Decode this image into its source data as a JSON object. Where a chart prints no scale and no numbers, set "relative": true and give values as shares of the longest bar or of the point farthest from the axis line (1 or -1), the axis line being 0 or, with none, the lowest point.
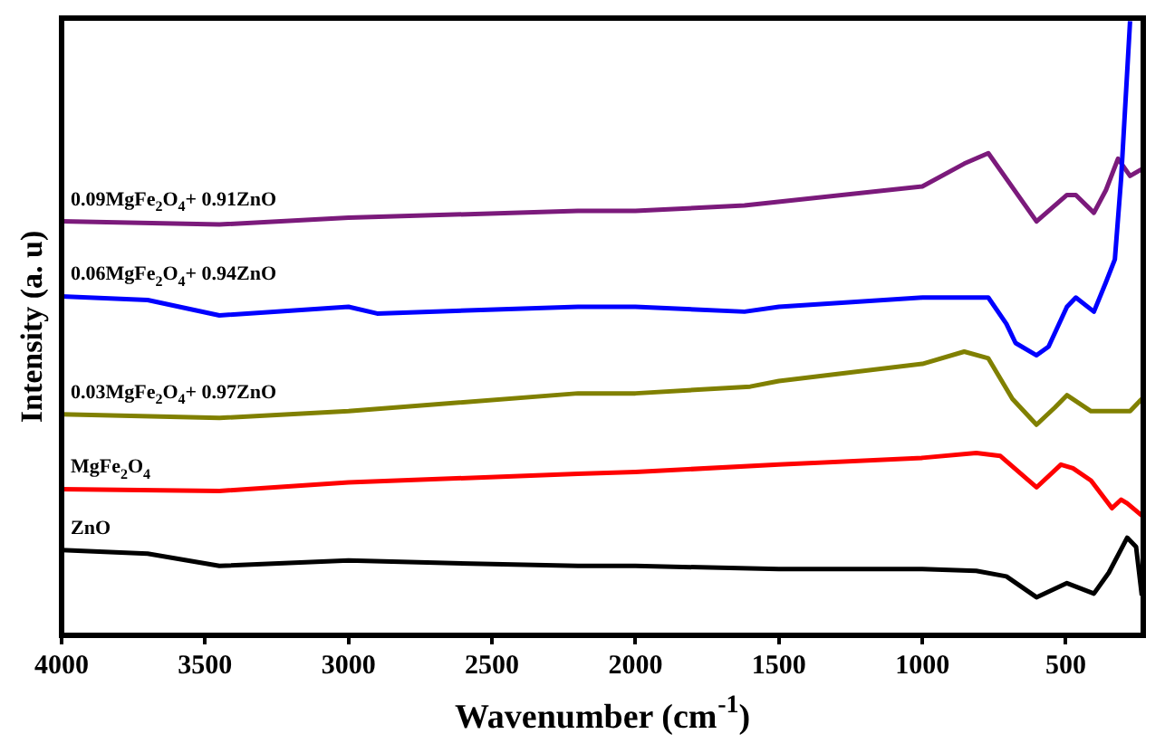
{
  "chart_data": {
    "type": "line",
    "relative": true,
    "xlabel": "Wavenumber (cm$^{-1}$)",
    "ylabel": "Intensity (a. u)",
    "xlim": [
      4000,
      230
    ],
    "xticks": [
      4000,
      3500,
      3000,
      2500,
      2000,
      1500,
      1000,
      500
    ],
    "grid": false,
    "legend": false,
    "marker": "none",
    "line_style": "solid",
    "series": [
      {
        "name": "ZnO",
        "color": "#000000",
        "x": [
          4000,
          3700,
          3450,
          3000,
          2500,
          2200,
          2000,
          1500,
          1000,
          812,
          707,
          602,
          496,
          402,
          350,
          286,
          255,
          235
        ],
        "values": [
          0.139,
          0.133,
          0.113,
          0.122,
          0.116,
          0.113,
          0.113,
          0.108,
          0.108,
          0.105,
          0.096,
          0.062,
          0.085,
          0.068,
          0.102,
          0.159,
          0.144,
          0.065
        ]
      },
      {
        "name": "MgFe$_{2}$O$_{4}$",
        "color": "#ff0000",
        "x": [
          4000,
          3450,
          3000,
          2200,
          2000,
          1500,
          1000,
          812,
          728,
          602,
          517,
          475,
          412,
          339,
          307,
          286,
          235
        ],
        "values": [
          0.238,
          0.235,
          0.249,
          0.263,
          0.266,
          0.278,
          0.289,
          0.297,
          0.292,
          0.241,
          0.278,
          0.272,
          0.252,
          0.207,
          0.221,
          0.215,
          0.195
        ]
      },
      {
        "name": "0.03MgFe$_{2}$O$_{4}$+ 0.97ZnO",
        "color": "#808000",
        "x": [
          4000,
          3450,
          3000,
          2200,
          2000,
          1600,
          1500,
          1000,
          854,
          770,
          686,
          602,
          538,
          496,
          412,
          276,
          235
        ],
        "values": [
          0.36,
          0.354,
          0.365,
          0.394,
          0.394,
          0.405,
          0.414,
          0.442,
          0.462,
          0.451,
          0.385,
          0.343,
          0.371,
          0.391,
          0.365,
          0.365,
          0.385
        ]
      },
      {
        "name": "0.06MgFe$_{2}$O$_{4}$+ 0.94ZnO",
        "color": "#0000ff",
        "x": [
          4000,
          3700,
          3450,
          3000,
          2900,
          2200,
          2000,
          1620,
          1500,
          1000,
          770,
          707,
          675,
          602,
          560,
          496,
          465,
          402,
          360,
          329,
          307,
          276
        ],
        "values": [
          0.552,
          0.546,
          0.521,
          0.535,
          0.524,
          0.535,
          0.535,
          0.527,
          0.535,
          0.55,
          0.55,
          0.507,
          0.476,
          0.456,
          0.47,
          0.535,
          0.55,
          0.527,
          0.575,
          0.612,
          0.745,
          1
        ]
      },
      {
        "name": "0.09MgFe$_{2}$O$_{4}$+ 0.91ZnO",
        "color": "#7b1a7b",
        "x": [
          4000,
          3450,
          3000,
          2200,
          2000,
          1620,
          1000,
          854,
          770,
          602,
          496,
          465,
          402,
          360,
          318,
          276,
          235
        ],
        "values": [
          0.674,
          0.669,
          0.68,
          0.691,
          0.691,
          0.7,
          0.731,
          0.768,
          0.785,
          0.674,
          0.717,
          0.717,
          0.688,
          0.725,
          0.776,
          0.748,
          0.759
        ]
      }
    ]
  }
}
